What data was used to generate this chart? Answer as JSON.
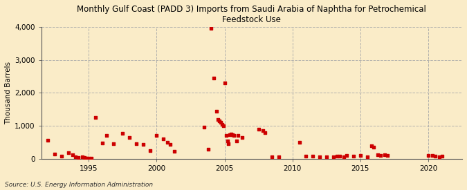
{
  "title": "Monthly Gulf Coast (PADD 3) Imports from Saudi Arabia of Naphtha for Petrochemical\nFeedstock Use",
  "ylabel": "Thousand Barrels",
  "source": "Source: U.S. Energy Information Administration",
  "background_color": "#faecc8",
  "marker_color": "#cc0000",
  "marker_size": 7,
  "ylim": [
    0,
    4000
  ],
  "xlim": [
    1991.5,
    2022.5
  ],
  "yticks": [
    0,
    1000,
    2000,
    3000,
    4000
  ],
  "ytick_labels": [
    "0",
    "1,000",
    "2,000",
    "3,000",
    "4,000"
  ],
  "xtick_positions": [
    1995,
    2000,
    2005,
    2010,
    2015,
    2020
  ],
  "data_points": [
    [
      1992.0,
      560
    ],
    [
      1992.5,
      150
    ],
    [
      1993.0,
      80
    ],
    [
      1993.5,
      180
    ],
    [
      1993.8,
      120
    ],
    [
      1994.0,
      60
    ],
    [
      1994.2,
      40
    ],
    [
      1994.5,
      55
    ],
    [
      1994.7,
      30
    ],
    [
      1994.9,
      20
    ],
    [
      1995.0,
      10
    ],
    [
      1995.2,
      25
    ],
    [
      1995.5,
      1250
    ],
    [
      1996.0,
      480
    ],
    [
      1996.3,
      700
    ],
    [
      1996.8,
      450
    ],
    [
      1997.5,
      780
    ],
    [
      1998.0,
      650
    ],
    [
      1998.5,
      450
    ],
    [
      1999.0,
      430
    ],
    [
      1999.5,
      250
    ],
    [
      2000.0,
      700
    ],
    [
      2000.5,
      600
    ],
    [
      2000.8,
      500
    ],
    [
      2001.0,
      440
    ],
    [
      2001.3,
      230
    ],
    [
      2003.5,
      950
    ],
    [
      2003.8,
      280
    ],
    [
      2004.0,
      3950
    ],
    [
      2004.2,
      2450
    ],
    [
      2004.4,
      1450
    ],
    [
      2004.5,
      1200
    ],
    [
      2004.6,
      1150
    ],
    [
      2004.7,
      1100
    ],
    [
      2004.8,
      1050
    ],
    [
      2004.9,
      1000
    ],
    [
      2005.0,
      2300
    ],
    [
      2005.1,
      700
    ],
    [
      2005.2,
      550
    ],
    [
      2005.3,
      450
    ],
    [
      2005.4,
      730
    ],
    [
      2005.5,
      760
    ],
    [
      2005.6,
      730
    ],
    [
      2005.7,
      700
    ],
    [
      2005.9,
      550
    ],
    [
      2006.0,
      700
    ],
    [
      2006.3,
      650
    ],
    [
      2007.5,
      900
    ],
    [
      2007.8,
      850
    ],
    [
      2008.0,
      800
    ],
    [
      2008.5,
      60
    ],
    [
      2009.0,
      50
    ],
    [
      2010.5,
      500
    ],
    [
      2011.0,
      80
    ],
    [
      2011.5,
      70
    ],
    [
      2012.0,
      60
    ],
    [
      2012.5,
      55
    ],
    [
      2013.0,
      50
    ],
    [
      2013.3,
      80
    ],
    [
      2013.5,
      75
    ],
    [
      2013.8,
      60
    ],
    [
      2014.0,
      100
    ],
    [
      2014.5,
      80
    ],
    [
      2015.0,
      90
    ],
    [
      2015.5,
      50
    ],
    [
      2015.8,
      400
    ],
    [
      2016.0,
      350
    ],
    [
      2016.3,
      130
    ],
    [
      2016.5,
      110
    ],
    [
      2016.8,
      120
    ],
    [
      2017.0,
      100
    ],
    [
      2020.0,
      110
    ],
    [
      2020.3,
      90
    ],
    [
      2020.5,
      80
    ],
    [
      2020.8,
      60
    ],
    [
      2021.0,
      70
    ]
  ]
}
